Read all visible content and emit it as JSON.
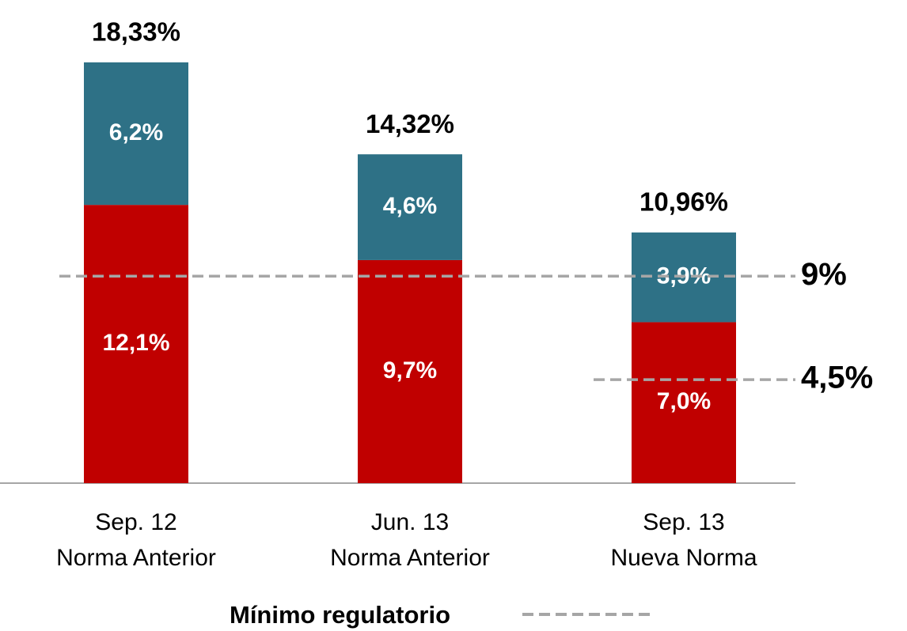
{
  "chart_data": {
    "type": "bar",
    "stacked": true,
    "categories": [
      [
        "Sep. 12",
        "Norma Anterior"
      ],
      [
        "Jun. 13",
        "Norma Anterior"
      ],
      [
        "Sep. 13",
        "Nueva Norma"
      ]
    ],
    "series": [
      {
        "color": "#c00000",
        "values": [
          12.1,
          9.7,
          7.0
        ],
        "value_labels": [
          "12,1%",
          "9,7%",
          "7,0%"
        ]
      },
      {
        "color": "#2e7186",
        "values": [
          6.2,
          4.6,
          3.9
        ],
        "value_labels": [
          "6,2%",
          "4,6%",
          "3,9%"
        ]
      }
    ],
    "totals": [
      18.33,
      14.32,
      10.96
    ],
    "total_labels": [
      "18,33%",
      "14,32%",
      "10,96%"
    ],
    "reference_lines": [
      {
        "value": 9,
        "label": "9%",
        "color": "#a6a6a6"
      },
      {
        "value": 4.5,
        "label": "4,5%",
        "color": "#a6a6a6"
      }
    ],
    "legend": {
      "label": "Mínimo regulatorio"
    }
  }
}
